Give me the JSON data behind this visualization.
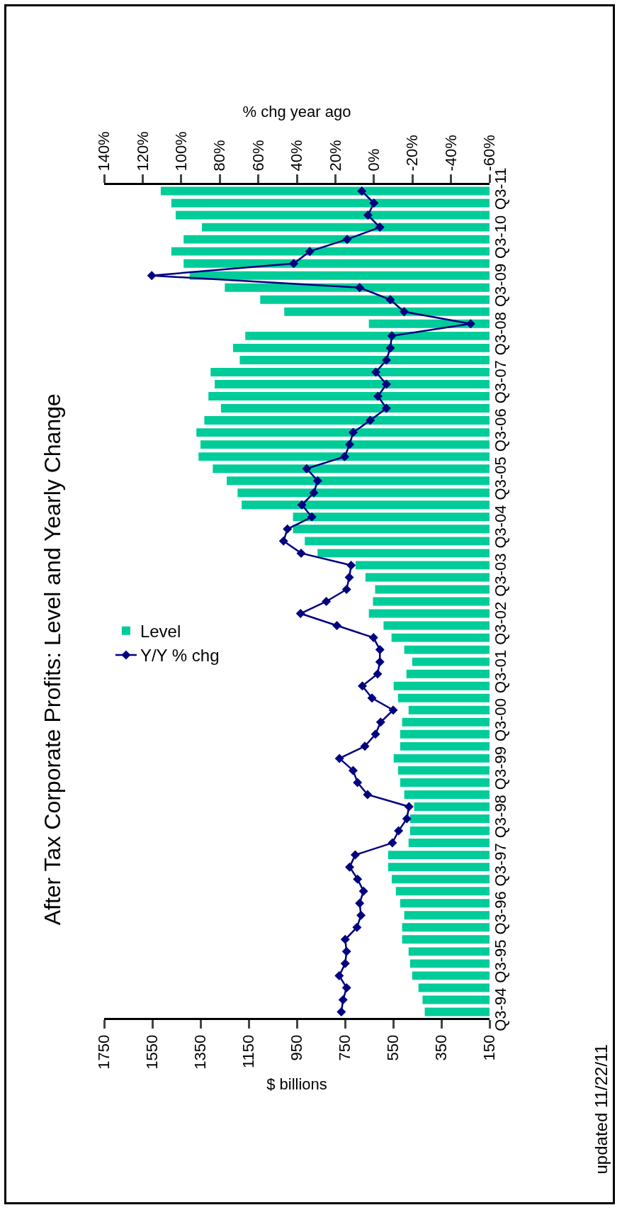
{
  "chart_data": {
    "type": "bar",
    "orientation": "horizontal",
    "title": "After Tax Corporate Profits: Level and Yearly Change",
    "xlabel": "$ billions",
    "x2label": "% chg year ago",
    "annotations": [
      "updated 11/22/11"
    ],
    "categories": [
      "Q3-11",
      null,
      null,
      null,
      "Q3-10",
      null,
      null,
      null,
      "Q3-09",
      null,
      null,
      null,
      "Q3-08",
      null,
      null,
      null,
      "Q3-07",
      null,
      null,
      null,
      "Q3-06",
      null,
      null,
      null,
      "Q3-05",
      null,
      null,
      null,
      "Q3-04",
      null,
      null,
      null,
      "Q3-03",
      null,
      null,
      null,
      "Q3-02",
      null,
      null,
      null,
      "Q3-01",
      null,
      null,
      null,
      "Q3-00",
      null,
      null,
      null,
      "Q3-99",
      null,
      null,
      null,
      "Q3-98",
      null,
      null,
      null,
      "Q3-97",
      null,
      null,
      null,
      "Q3-96",
      null,
      null,
      null,
      "Q3-95",
      null,
      null,
      null,
      "Q3-94"
    ],
    "series": [
      {
        "name": "Level",
        "color": "#00cc99",
        "values": [
          1515,
          1471,
          1453,
          1344,
          1420,
          1471,
          1420,
          1395,
          1249,
          1102,
          1002,
          651,
          1164,
          1215,
          1187,
          1308,
          1291,
          1317,
          1265,
          1334,
          1367,
          1350,
          1358,
          1299,
          1241,
          1196,
          1179,
          966,
          966,
          917,
          864,
          706,
          665,
          625,
          634,
          651,
          590,
          557,
          504,
          471,
          495,
          548,
          530,
          486,
          513,
          521,
          521,
          548,
          530,
          521,
          504,
          463,
          480,
          480,
          486,
          571,
          571,
          556,
          539,
          521,
          504,
          513,
          513,
          486,
          480,
          471,
          445,
          428,
          419
        ]
      },
      {
        "name": "Y/Y % chg",
        "type": "line",
        "axis": "x2",
        "color": "#000080",
        "marker": "diamond",
        "values": [
          6.3,
          0.0,
          3.1,
          -3.1,
          13.9,
          33.3,
          41.6,
          115.3,
          7.4,
          -8.5,
          -15.7,
          -50.2,
          -9.3,
          -8.5,
          -6.5,
          -1.0,
          -6.5,
          -2.1,
          -6.5,
          1.9,
          10.8,
          12.6,
          15.2,
          34.9,
          29.2,
          31.2,
          37.4,
          32.2,
          44.9,
          46.9,
          37.8,
          11.8,
          12.8,
          14.2,
          24.7,
          38.1,
          19.2,
          0.2,
          -3.1,
          -3.1,
          -1.9,
          6.0,
          1.0,
          -10.0,
          -3.5,
          -0.8,
          4.7,
          17.9,
          10.8,
          8.5,
          3.3,
          -18.2,
          -17.1,
          -12.8,
          -9.6,
          9.7,
          12.6,
          8.5,
          5.4,
          7.4,
          6.7,
          8.8,
          14.9,
          14.2,
          14.9,
          18.0,
          14.2,
          16.0,
          16.9
        ]
      }
    ],
    "xlim": [
      1750,
      150
    ],
    "xticks": [
      1750,
      1550,
      1350,
      1150,
      950,
      750,
      550,
      350,
      150
    ],
    "x2lim": [
      140,
      -60
    ],
    "x2ticks": [
      {
        "value": 140,
        "label": "140%"
      },
      {
        "value": 120,
        "label": "120%"
      },
      {
        "value": 100,
        "label": "100%"
      },
      {
        "value": 80,
        "label": "80%"
      },
      {
        "value": 60,
        "label": "60%"
      },
      {
        "value": 40,
        "label": "40%"
      },
      {
        "value": 20,
        "label": "20%"
      },
      {
        "value": 0,
        "label": "0%"
      },
      {
        "value": -20,
        "label": "-20%"
      },
      {
        "value": -40,
        "label": "-40%"
      },
      {
        "value": -60,
        "label": "-60%"
      }
    ],
    "grid": false,
    "legend": "left"
  }
}
